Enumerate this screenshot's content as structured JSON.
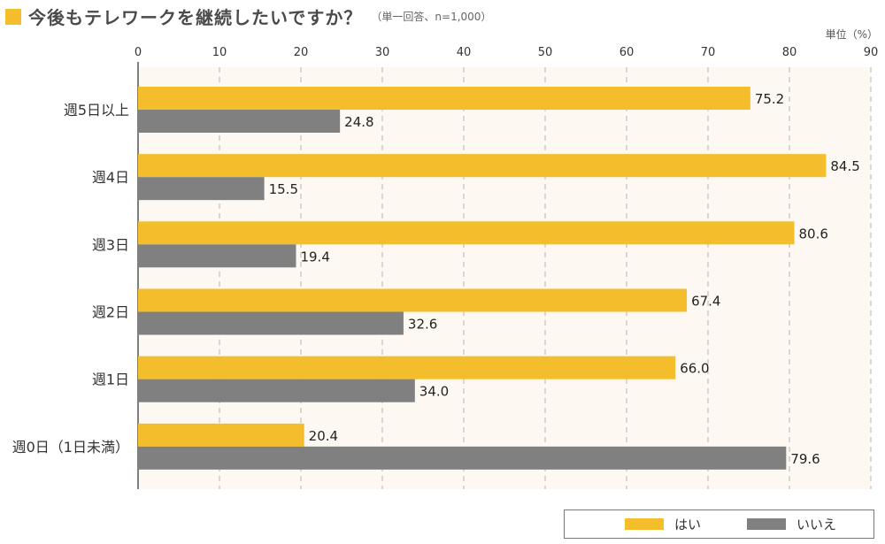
{
  "title": {
    "text": "今後もテレワークを継続したいですか？",
    "note": "（単一回答、n=1,000）"
  },
  "unit": "単位（%）",
  "colors": {
    "yes": "#f3bd2b",
    "no": "#808080",
    "plot_bg": "#fdf9f2"
  },
  "legend": {
    "yes_label": "はい",
    "no_label": "いいえ"
  },
  "chart_data": {
    "type": "bar",
    "orientation": "horizontal",
    "categories": [
      "週5日以上",
      "週4日",
      "週3日",
      "週2日",
      "週1日",
      "週0日（1日未満）"
    ],
    "series": [
      {
        "name": "はい",
        "values": [
          75.2,
          84.5,
          80.6,
          67.4,
          66.0,
          20.4
        ]
      },
      {
        "name": "いいえ",
        "values": [
          24.8,
          15.5,
          19.4,
          32.6,
          34.0,
          79.6
        ]
      }
    ],
    "xlim": [
      0,
      90
    ],
    "xticks": [
      0,
      10,
      20,
      30,
      40,
      50,
      60,
      70,
      80,
      90
    ],
    "grid": true,
    "legend_position": "bottom-right"
  }
}
